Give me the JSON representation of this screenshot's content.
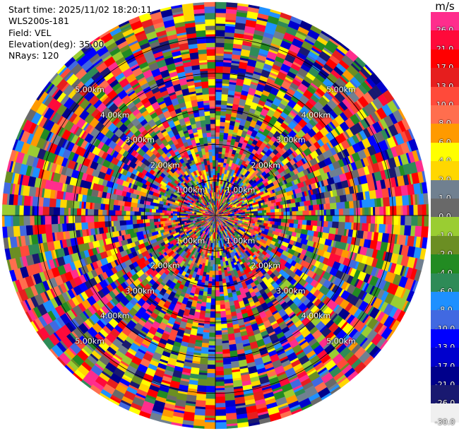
{
  "info": {
    "start_time_label": "Start time",
    "start_time": "2025/11/02 18:20:11",
    "instrument": "WLS200s-181",
    "field_label": "Field",
    "field": "VEL",
    "elevation_label": "Elevation(deg)",
    "elevation": "35.00",
    "nrays_label": "NRays",
    "nrays": "120"
  },
  "colorbar": {
    "unit": "m/s",
    "bins": [
      {
        "color": "#ff2d8d",
        "label": "26.0"
      },
      {
        "color": "#ff0a3a",
        "label": "21.0"
      },
      {
        "color": "#ff0000",
        "label": "17.0"
      },
      {
        "color": "#e61e1e",
        "label": "13.0"
      },
      {
        "color": "#ff4a3a",
        "label": "10.0"
      },
      {
        "color": "#ff6e4e",
        "label": "8.0"
      },
      {
        "color": "#ff9a00",
        "label": "6.0"
      },
      {
        "color": "#ffff00",
        "label": "4.0"
      },
      {
        "color": "#ffd700",
        "label": "2.0"
      },
      {
        "color": "#708090",
        "label": "1.0"
      },
      {
        "color": "#696969",
        "label": "0.0"
      },
      {
        "color": "#9acd32",
        "label": "-1.0"
      },
      {
        "color": "#6b8e23",
        "label": "-2.0"
      },
      {
        "color": "#228b22",
        "label": "-4.0"
      },
      {
        "color": "#2e8b57",
        "label": "-6.0"
      },
      {
        "color": "#1e90ff",
        "label": "-8.0"
      },
      {
        "color": "#4169e1",
        "label": "-10.0"
      },
      {
        "color": "#0000ff",
        "label": "-13.0"
      },
      {
        "color": "#0000cd",
        "label": "-17.0"
      },
      {
        "color": "#00008b",
        "label": "-21.0"
      },
      {
        "color": "#191970",
        "label": "-26.0"
      },
      {
        "color": "#f0f0f0",
        "label": "-30.0"
      }
    ]
  },
  "chart_data": {
    "type": "heatmap",
    "projection": "polar-ppi",
    "field": "VEL",
    "nrays": 120,
    "value_range": [
      -30.0,
      30.0
    ],
    "range_rings_km": [
      1,
      2,
      3,
      4,
      5
    ],
    "range_ring_labels": [
      "1.00km",
      "2.00km",
      "3.00km",
      "4.00km",
      "5.00km"
    ],
    "grid": true
  }
}
